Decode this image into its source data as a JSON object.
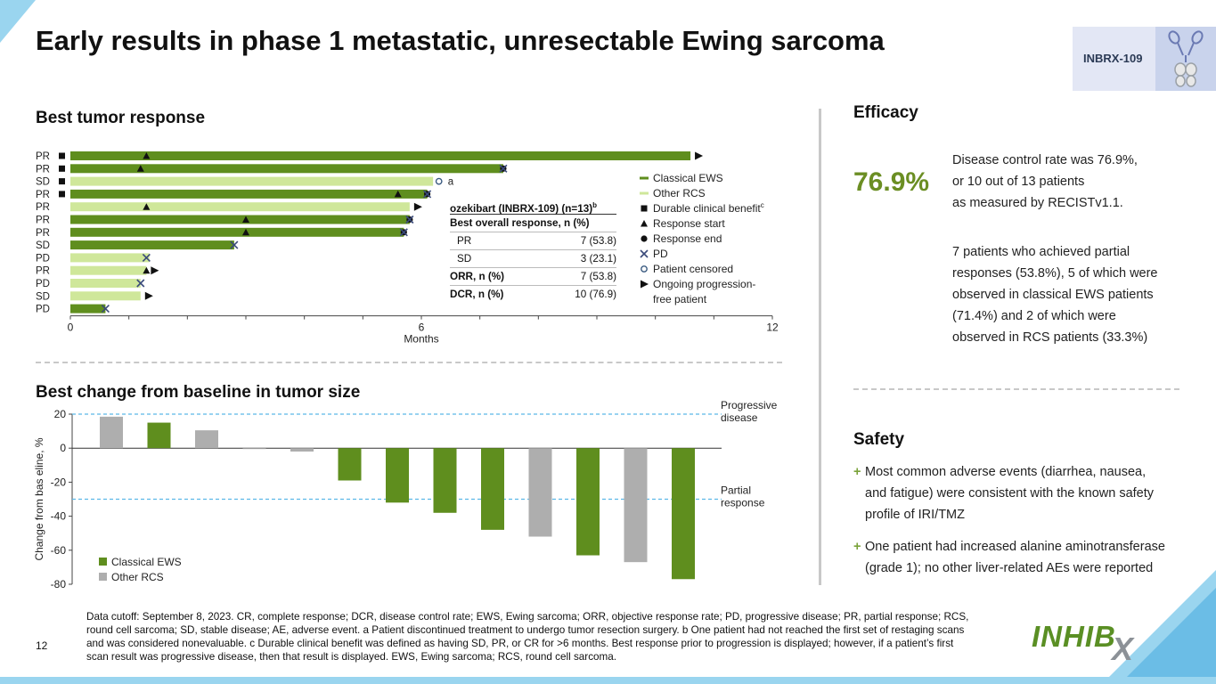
{
  "title": "Early results in phase 1 metastatic, unresectable Ewing sarcoma",
  "badge": {
    "label": "INBRX-109",
    "icon": "antibody-icon"
  },
  "swimmer": {
    "heading": "Best tumor response",
    "chart_data": {
      "type": "swimmer",
      "xlabel": "Months",
      "xlim": [
        0,
        12
      ],
      "xticks": [
        "0",
        "6",
        "12"
      ],
      "patients": [
        {
          "response": "PR",
          "duration": 10.6,
          "group": "Classical EWS",
          "durable": true,
          "start": 1.3,
          "end": null,
          "pd": null,
          "censored": null,
          "ongoing": true
        },
        {
          "response": "PR",
          "duration": 7.4,
          "group": "Classical EWS",
          "durable": true,
          "start": 1.2,
          "end": 7.4,
          "pd": 7.4,
          "censored": null,
          "ongoing": false
        },
        {
          "response": "SD",
          "duration": 6.2,
          "group": "Other RCS",
          "durable": true,
          "start": null,
          "end": null,
          "pd": null,
          "censored": 6.3,
          "ongoing": false
        },
        {
          "response": "PR",
          "duration": 6.1,
          "group": "Classical EWS",
          "durable": true,
          "start": 5.6,
          "end": 6.1,
          "pd": 6.1,
          "censored": null,
          "ongoing": false
        },
        {
          "response": "PR",
          "duration": 5.8,
          "group": "Other RCS",
          "durable": false,
          "start": 1.3,
          "end": null,
          "pd": null,
          "censored": null,
          "ongoing": true
        },
        {
          "response": "PR",
          "duration": 5.8,
          "group": "Classical EWS",
          "durable": false,
          "start": 3.0,
          "end": 5.8,
          "pd": 5.8,
          "censored": null,
          "ongoing": false
        },
        {
          "response": "PR",
          "duration": 5.7,
          "group": "Classical EWS",
          "durable": false,
          "start": 3.0,
          "end": 5.7,
          "pd": 5.7,
          "censored": null,
          "ongoing": false
        },
        {
          "response": "SD",
          "duration": 2.8,
          "group": "Classical EWS",
          "durable": false,
          "start": null,
          "end": null,
          "pd": 2.8,
          "censored": null,
          "ongoing": false
        },
        {
          "response": "PD",
          "duration": 1.35,
          "group": "Other RCS",
          "durable": false,
          "start": null,
          "end": null,
          "pd": 1.3,
          "censored": null,
          "ongoing": false
        },
        {
          "response": "PR",
          "duration": 1.3,
          "group": "Other RCS",
          "durable": false,
          "start": 1.3,
          "end": null,
          "pd": null,
          "censored": null,
          "ongoing": true
        },
        {
          "response": "PD",
          "duration": 1.2,
          "group": "Other RCS",
          "durable": false,
          "start": null,
          "end": null,
          "pd": 1.2,
          "censored": null,
          "ongoing": false
        },
        {
          "response": "SD",
          "duration": 1.2,
          "group": "Other RCS",
          "durable": false,
          "start": null,
          "end": null,
          "pd": null,
          "censored": null,
          "ongoing": true
        },
        {
          "response": "PD",
          "duration": 0.6,
          "group": "Classical EWS",
          "durable": false,
          "start": null,
          "end": null,
          "pd": 0.6,
          "censored": null,
          "ongoing": false
        }
      ],
      "annotation": "a",
      "legend": [
        "Classical EWS",
        "Other RCS",
        "Durable clinical benefit",
        "Response start",
        "Response end",
        "PD",
        "Patient censored",
        "Ongoing progression-",
        "free patient"
      ],
      "legend_sup": "c"
    },
    "table": {
      "title": "ozekibart (INBRX-109) (n=13)",
      "title_sup": "b",
      "subheader": "Best overall response, n (%)",
      "rows": [
        {
          "label": "PR",
          "value": "7 (53.8)"
        },
        {
          "label": "SD",
          "value": "3 (23.1)"
        },
        {
          "label": "ORR, n (%)",
          "value": "7 (53.8)"
        },
        {
          "label": "DCR, n (%)",
          "value": "10 (76.9)"
        }
      ]
    }
  },
  "waterfall": {
    "heading": "Best change from baseline in tumor size",
    "chart_data": {
      "type": "bar",
      "ylabel": "Change from bas eline, %",
      "ylim": [
        -80,
        20
      ],
      "yticks": [
        "20",
        "0",
        "-20",
        "-40",
        "-60",
        "-80"
      ],
      "values": [
        18.5,
        15,
        10.5,
        -0.5,
        -2,
        -19,
        -32,
        -38,
        -48,
        -52,
        -63,
        -67,
        -77
      ],
      "groups": [
        "Other RCS",
        "Classical EWS",
        "Other RCS",
        "Other RCS",
        "Other RCS",
        "Classical EWS",
        "Classical EWS",
        "Classical EWS",
        "Classical EWS",
        "Other RCS",
        "Classical EWS",
        "Other RCS",
        "Classical EWS"
      ],
      "reference_lines": [
        {
          "y": 20,
          "label": [
            "Progressive",
            "disease"
          ]
        },
        {
          "y": -30,
          "label": [
            "Partial",
            "response"
          ]
        }
      ],
      "legend": [
        "Classical EWS",
        "Other RCS"
      ]
    }
  },
  "efficacy": {
    "heading": "Efficacy",
    "big_value": "76.9%",
    "text1": [
      "Disease control rate was 76.9%,",
      "or 10 out of 13 patients",
      "as measured by RECISTv1.1."
    ],
    "text2": [
      "7 patients who achieved partial",
      "responses (53.8%), 5 of which were",
      "observed in classical EWS patients",
      "(71.4%) and 2 of which were",
      "observed in RCS patients (33.3%)"
    ]
  },
  "safety": {
    "heading": "Safety",
    "bullet_symbol": "+",
    "bullets": [
      [
        "Most common adverse events (diarrhea, nausea,",
        "and fatigue) were consistent with the known safety",
        "profile of IRI/TMZ"
      ],
      [
        "One patient had increased alanine aminotransferase",
        "(grade 1); no other liver-related AEs were reported"
      ]
    ]
  },
  "footnote": "Data cutoff: September 8, 2023. CR, complete response; DCR, disease control rate; EWS, Ewing sarcoma; ORR, objective response rate; PD, progressive disease;  PR, partial response; RCS, round cell sarcoma; SD, stable disease; AE, adverse event. a Patient discontinued treatment to undergo tumor resection surgery. b One patient had not reached the first set of restaging scans and was considered nonevaluable. c Durable clinical benefit was defined as having SD, PR, or CR for >6 months. Best response prior to progression is displayed; however, if a patient’s first scan result was progressive disease, then that result is displayed. EWS, Ewing sarcoma; RCS, round cell sarcoma.",
  "page_number": "12",
  "logo": {
    "text": "INHIB",
    "mark": "X"
  },
  "colors": {
    "ews": "#5f8e1e",
    "rcs": "#cfe79a",
    "wf_rcs": "#aeaeae",
    "accent": "#6b8e23",
    "ref_line": "#5bb8e8",
    "bar_light": "#9ad5ef"
  }
}
